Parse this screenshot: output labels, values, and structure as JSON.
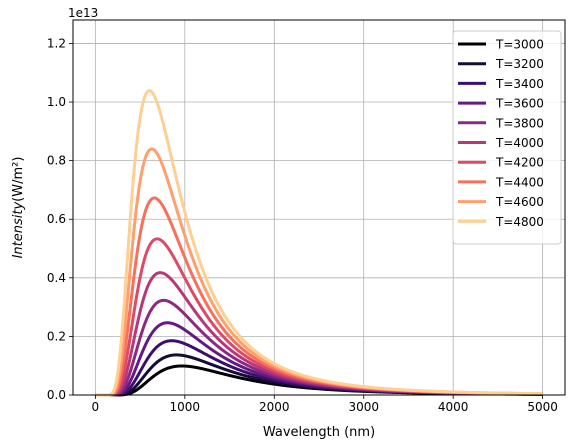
{
  "chart_data": {
    "type": "line",
    "xlabel": "Wavelength (nm)",
    "ylabel": "Intensity(W/m²)",
    "offset_text": "1e13",
    "xlim": [
      -250,
      5250
    ],
    "ylim": [
      0,
      12800000000000.0
    ],
    "xticks": [
      0,
      1000,
      2000,
      3000,
      4000,
      5000
    ],
    "xtick_labels": [
      "0",
      "1000",
      "2000",
      "3000",
      "4000",
      "5000"
    ],
    "yticks": [
      0,
      2000000000000.0,
      4000000000000.0,
      6000000000000.0,
      8000000000000.0,
      10000000000000.0,
      12000000000000.0
    ],
    "ytick_labels": [
      "0.0",
      "0.2",
      "0.4",
      "0.6",
      "0.8",
      "1.0",
      "1.2"
    ],
    "grid": true,
    "legend_position": "top-right",
    "x": [
      1,
      5000
    ],
    "series": [
      {
        "name": "T=3000",
        "temperature": 3000,
        "color": "#000004"
      },
      {
        "name": "T=3200",
        "temperature": 3200,
        "color": "#140e36"
      },
      {
        "name": "T=3400",
        "temperature": 3400,
        "color": "#3b0f70"
      },
      {
        "name": "T=3600",
        "temperature": 3600,
        "color": "#641a80"
      },
      {
        "name": "T=3800",
        "temperature": 3800,
        "color": "#8c2981"
      },
      {
        "name": "T=4000",
        "temperature": 4000,
        "color": "#b73779"
      },
      {
        "name": "T=4200",
        "temperature": 4200,
        "color": "#de4968"
      },
      {
        "name": "T=4400",
        "temperature": 4400,
        "color": "#f7705c"
      },
      {
        "name": "T=4600",
        "temperature": 4600,
        "color": "#fe9f6d"
      },
      {
        "name": "T=4800",
        "temperature": 4800,
        "color": "#fecf92"
      }
    ]
  }
}
